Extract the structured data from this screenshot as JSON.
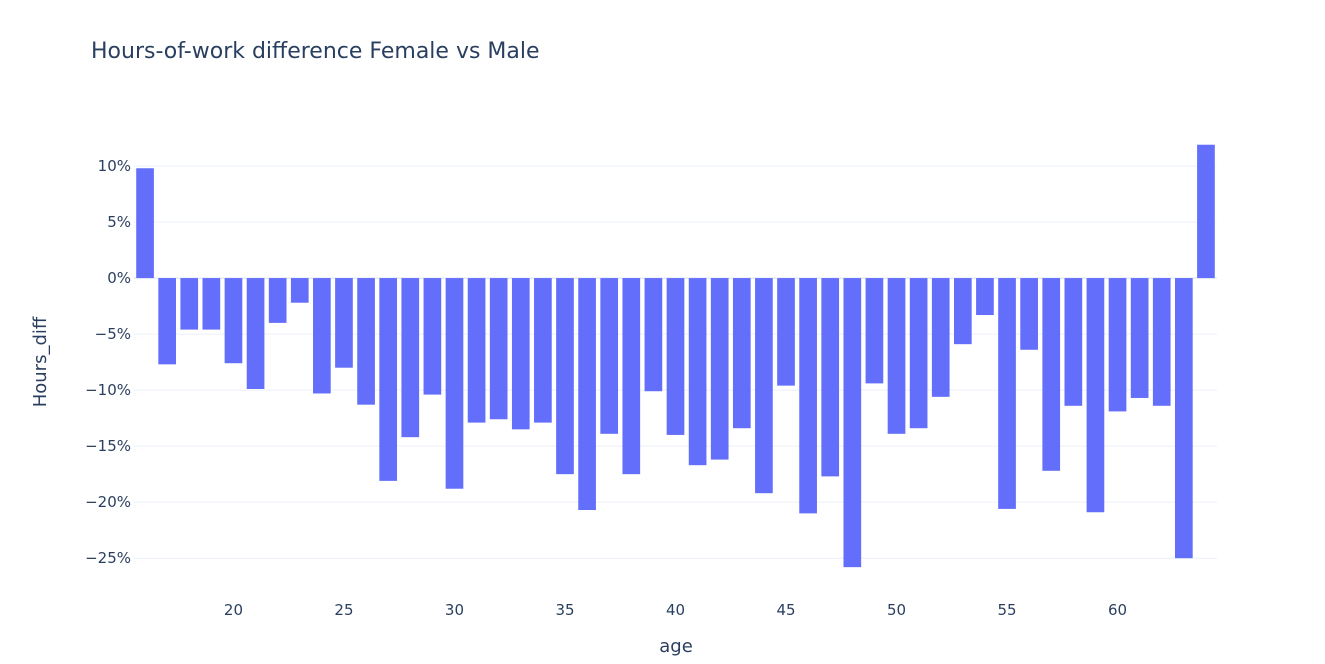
{
  "chart_data": {
    "type": "bar",
    "title": "Hours-of-work difference Female vs Male",
    "xlabel": "age",
    "ylabel": "Hours_diff",
    "bar_color": "#636efa",
    "grid_color": "#ebf0f8",
    "text_color": "#2a3f5f",
    "xlim": [
      15.5,
      64.5
    ],
    "ylim": [
      -26.5,
      12.5
    ],
    "x_ticks": [
      20,
      25,
      30,
      35,
      40,
      45,
      50,
      55,
      60
    ],
    "y_ticks": [
      10,
      5,
      0,
      -5,
      -10,
      -15,
      -20,
      -25
    ],
    "y_tick_labels": [
      "10%",
      "5%",
      "0%",
      "−5%",
      "−10%",
      "−15%",
      "−20%",
      "−25%"
    ],
    "grid": true,
    "x": [
      16,
      17,
      18,
      19,
      20,
      21,
      22,
      23,
      24,
      25,
      26,
      27,
      28,
      29,
      30,
      31,
      32,
      33,
      34,
      35,
      36,
      37,
      38,
      39,
      40,
      41,
      42,
      43,
      44,
      45,
      46,
      47,
      48,
      49,
      50,
      51,
      52,
      53,
      54,
      55,
      56,
      57,
      58,
      59,
      60,
      61,
      62,
      63,
      64
    ],
    "values": [
      9.8,
      -7.7,
      -4.6,
      -4.6,
      -7.6,
      -9.9,
      -4.0,
      -2.2,
      -10.3,
      -8.0,
      -11.3,
      -18.1,
      -14.2,
      -10.4,
      -18.8,
      -12.9,
      -12.6,
      -13.5,
      -12.9,
      -17.5,
      -20.7,
      -13.9,
      -17.5,
      -10.1,
      -14.0,
      -16.7,
      -16.2,
      -13.4,
      -19.2,
      -9.6,
      -21.0,
      -17.7,
      -25.8,
      -9.4,
      -13.9,
      -13.4,
      -10.6,
      -5.9,
      -3.3,
      -20.6,
      -6.4,
      -17.2,
      -11.4,
      -20.9,
      -11.9,
      -10.7,
      -11.4,
      -25.0,
      11.9
    ]
  }
}
